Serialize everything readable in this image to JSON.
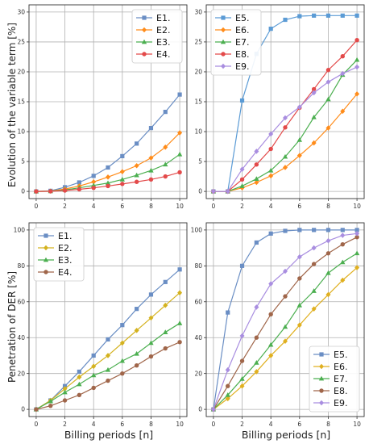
{
  "figure": {
    "ylabel_top": "Evolution of the variable term [%]",
    "ylabel_bottom": "Penetration of DER [%]",
    "xlabel_left": "Billing periods [n]",
    "xlabel_right": "Billing periods [n]"
  },
  "colors": {
    "E1.": "#6a8ec4",
    "E2.": "#ff8c1a",
    "E3.": "#4caf50",
    "E4.": "#e34a4a",
    "E5.": "#5b9bd5",
    "E6.": "#ff8c1a",
    "E7.": "#4caf50",
    "E8.": "#e34a4a",
    "E9.": "#a98ee0",
    "E2.b": "#d4b21f",
    "E8.b": "#a0664a",
    "E6.b": "#e0b020"
  },
  "chart_data": [
    {
      "type": "line",
      "panel": "top-left",
      "x": [
        0,
        1,
        2,
        3,
        4,
        5,
        6,
        7,
        8,
        9,
        10
      ],
      "ylim": [
        0,
        30
      ],
      "yticks": [
        0,
        5,
        10,
        15,
        20,
        25,
        30
      ],
      "xticks": [
        0,
        2,
        4,
        6,
        8,
        10
      ],
      "grid": true,
      "legend": "top-right",
      "series": [
        {
          "name": "E1.",
          "marker": "square",
          "values": [
            0,
            0.1,
            0.7,
            1.5,
            2.6,
            4.0,
            5.9,
            8.0,
            10.6,
            13.3,
            16.2
          ]
        },
        {
          "name": "E2.",
          "marker": "diamond",
          "values": [
            0,
            0.05,
            0.4,
            0.9,
            1.6,
            2.4,
            3.3,
            4.3,
            5.6,
            7.4,
            9.8
          ]
        },
        {
          "name": "E3.",
          "marker": "triangle",
          "values": [
            0,
            0.03,
            0.25,
            0.6,
            1.0,
            1.4,
            2.0,
            2.7,
            3.5,
            4.5,
            6.2
          ]
        },
        {
          "name": "E4.",
          "marker": "circle",
          "values": [
            0,
            0.02,
            0.15,
            0.35,
            0.6,
            0.9,
            1.25,
            1.6,
            2.0,
            2.5,
            3.2
          ]
        }
      ]
    },
    {
      "type": "line",
      "panel": "top-right",
      "x": [
        0,
        1,
        2,
        3,
        4,
        5,
        6,
        7,
        8,
        9,
        10
      ],
      "ylim": [
        0,
        30
      ],
      "yticks": [
        0,
        5,
        10,
        15,
        20,
        25,
        30
      ],
      "xticks": [
        0,
        2,
        4,
        6,
        8,
        10
      ],
      "grid": true,
      "legend": "top-left",
      "series": [
        {
          "name": "E5.",
          "marker": "square",
          "values": [
            0,
            0,
            15.2,
            23.0,
            27.2,
            28.7,
            29.3,
            29.4,
            29.4,
            29.4,
            29.4
          ]
        },
        {
          "name": "E6.",
          "marker": "diamond",
          "values": [
            0,
            0,
            0.6,
            1.5,
            2.6,
            4.0,
            6.0,
            8.1,
            10.6,
            13.4,
            16.3
          ]
        },
        {
          "name": "E7.",
          "marker": "triangle",
          "values": [
            0,
            0,
            0.9,
            2.1,
            3.5,
            5.8,
            8.6,
            12.4,
            15.4,
            19.5,
            22.0
          ]
        },
        {
          "name": "E8.",
          "marker": "circle",
          "values": [
            0,
            0,
            2.0,
            4.5,
            7.1,
            10.7,
            14.0,
            17.1,
            20.3,
            22.6,
            25.3
          ]
        },
        {
          "name": "E9.",
          "marker": "diamond",
          "values": [
            0,
            0,
            3.7,
            6.7,
            9.6,
            12.3,
            14.1,
            16.5,
            18.3,
            19.7,
            20.8
          ]
        }
      ]
    },
    {
      "type": "line",
      "panel": "bottom-left",
      "x": [
        0,
        1,
        2,
        3,
        4,
        5,
        6,
        7,
        8,
        9,
        10
      ],
      "ylim": [
        0,
        100
      ],
      "yticks": [
        0,
        20,
        40,
        60,
        80,
        100
      ],
      "xticks": [
        0,
        2,
        4,
        6,
        8,
        10
      ],
      "grid": true,
      "legend": "top-left",
      "series": [
        {
          "name": "E1.",
          "marker": "square",
          "values": [
            0,
            5,
            13,
            21,
            30,
            39,
            47,
            56,
            64,
            71,
            78
          ]
        },
        {
          "name": "E2.",
          "marker": "diamond",
          "values": [
            0,
            5,
            11.5,
            18,
            24,
            30,
            37,
            44,
            51,
            58,
            65
          ]
        },
        {
          "name": "E3.",
          "marker": "triangle",
          "values": [
            0,
            4.5,
            9.5,
            14,
            19,
            22,
            27,
            31,
            37,
            43,
            48
          ]
        },
        {
          "name": "E4.",
          "marker": "circle",
          "values": [
            0,
            2,
            5,
            8,
            12,
            16,
            20,
            24.5,
            29.5,
            34,
            37.5
          ]
        }
      ]
    },
    {
      "type": "line",
      "panel": "bottom-right",
      "x": [
        0,
        1,
        2,
        3,
        4,
        5,
        6,
        7,
        8,
        9,
        10
      ],
      "ylim": [
        0,
        100
      ],
      "yticks": [
        0,
        20,
        40,
        60,
        80,
        100
      ],
      "xticks": [
        0,
        2,
        4,
        6,
        8,
        10
      ],
      "grid": true,
      "legend": "bottom-right",
      "series": [
        {
          "name": "E5.",
          "marker": "square",
          "values": [
            0,
            54,
            80,
            93,
            98,
            99.5,
            100,
            100,
            100,
            100,
            100
          ]
        },
        {
          "name": "E6.",
          "marker": "diamond",
          "values": [
            0,
            6,
            13,
            21,
            30,
            38,
            47,
            56,
            64,
            72,
            79
          ]
        },
        {
          "name": "E7.",
          "marker": "triangle",
          "values": [
            0,
            8,
            17,
            26,
            36,
            46,
            58,
            66,
            76,
            82,
            87
          ]
        },
        {
          "name": "E8.",
          "marker": "circle",
          "values": [
            0,
            13,
            27,
            40,
            53,
            63,
            73,
            81,
            87,
            92,
            96
          ]
        },
        {
          "name": "E9.",
          "marker": "diamond",
          "values": [
            0,
            22,
            41,
            57,
            70,
            77,
            85,
            90,
            94,
            97,
            98
          ]
        }
      ]
    }
  ]
}
